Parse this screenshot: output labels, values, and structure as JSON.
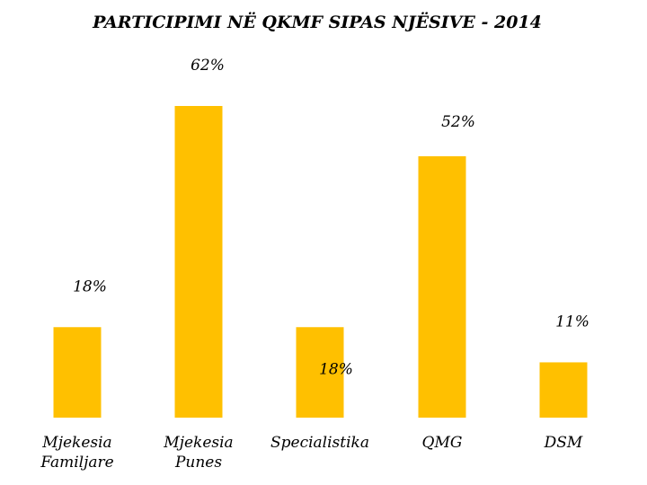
{
  "chart_data": {
    "type": "bar",
    "title": "PARTICIPIMI NË QKMF SIPAS NJËSIVE - 2014",
    "categories": [
      [
        "Mjekesia",
        "Familjare"
      ],
      [
        "Mjekesia",
        "Punes"
      ],
      [
        "Specialistika"
      ],
      [
        "QMG"
      ],
      [
        "DSM"
      ]
    ],
    "values": [
      18,
      62,
      18,
      52,
      11
    ],
    "data_labels": [
      "18%",
      "62%",
      "18%",
      "52%",
      "11%"
    ],
    "ylim": [
      0,
      70
    ],
    "bar_color": "#FFC000",
    "xlabel": "",
    "ylabel": "",
    "grid": false,
    "legend": "none"
  }
}
